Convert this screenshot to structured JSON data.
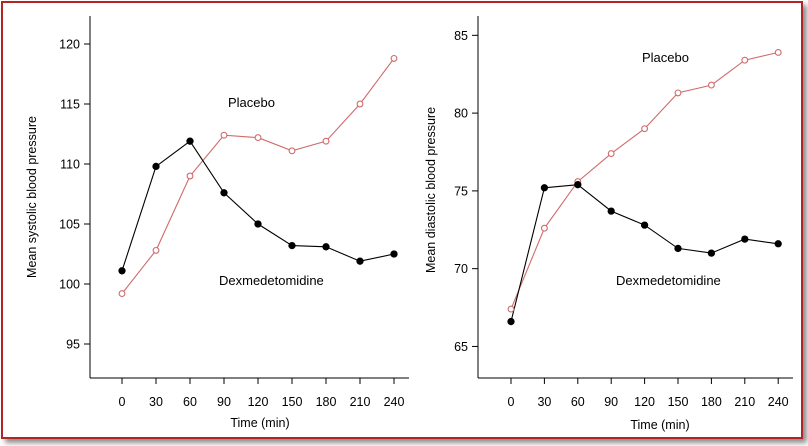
{
  "colors": {
    "frame": "#b02525",
    "placebo": "#d06a6a",
    "dex": "#000000"
  },
  "chart_data": [
    {
      "type": "line",
      "xlabel": "Time (min)",
      "ylabel": "Mean systolic blood pressure",
      "x": [
        0,
        30,
        60,
        90,
        120,
        150,
        180,
        210,
        240
      ],
      "x_tick_labels": [
        "0",
        "30",
        "60",
        "90",
        "120",
        "150",
        "180",
        "210",
        "240"
      ],
      "y_ticks": [
        95,
        100,
        105,
        110,
        115,
        120
      ],
      "ylim": [
        93.5,
        121.5
      ],
      "series": [
        {
          "name": "Placebo",
          "marker": "open-circle",
          "values": [
            99.2,
            102.8,
            109.0,
            112.4,
            112.2,
            111.1,
            111.9,
            115.0,
            118.8
          ]
        },
        {
          "name": "Dexmedetomidine",
          "marker": "filled-circle",
          "values": [
            101.1,
            109.8,
            111.9,
            107.6,
            105.0,
            103.2,
            103.1,
            101.9,
            102.5
          ]
        }
      ]
    },
    {
      "type": "line",
      "xlabel": "Time (min)",
      "ylabel": "Mean diastolic blood pressure",
      "x": [
        0,
        30,
        60,
        90,
        120,
        150,
        180,
        210,
        240
      ],
      "x_tick_labels": [
        "0",
        "30",
        "60",
        "90",
        "120",
        "150",
        "180",
        "210",
        "240"
      ],
      "y_ticks": [
        65,
        70,
        75,
        80,
        85
      ],
      "ylim": [
        64.0,
        85.6
      ],
      "series": [
        {
          "name": "Placebo",
          "marker": "open-circle",
          "values": [
            67.4,
            72.6,
            75.6,
            77.4,
            79.0,
            81.3,
            81.8,
            83.4,
            83.9
          ]
        },
        {
          "name": "Dexmedetomidine",
          "marker": "filled-circle",
          "values": [
            66.6,
            75.2,
            75.4,
            73.7,
            72.8,
            71.3,
            71.0,
            71.9,
            71.6
          ]
        }
      ]
    }
  ]
}
